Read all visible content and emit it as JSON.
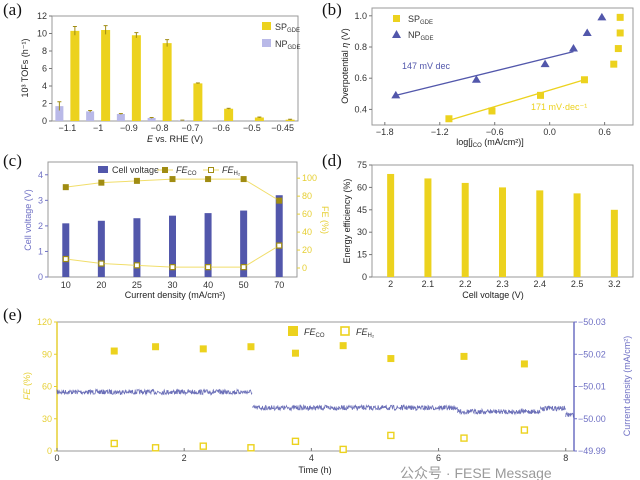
{
  "colors": {
    "yellow": "#ecd21e",
    "lavender": "#b9b9e8",
    "blue": "#5257ab",
    "olive": "#a08c12",
    "fe_axis": "#e6cf33",
    "cv_axis": "#6f70c4"
  },
  "chart_data": [
    {
      "panel": "(a)",
      "type": "bar",
      "categories": [
        "-1.1",
        "-1",
        "-0.9",
        "-0.8",
        "-0.7",
        "-0.6",
        "-0.5",
        "-0.45"
      ],
      "xlabel": {
        "pre": "E",
        "post": " vs. RHE (V)"
      },
      "ylabel": "10³ TOFs (h⁻¹)",
      "ylim": [
        0,
        12
      ],
      "yticks": [
        0,
        2,
        4,
        6,
        8,
        10,
        12
      ],
      "legend": "top-right",
      "series": [
        {
          "name": {
            "main": "SP",
            "sub": "GDE"
          },
          "color": "#ecd21e",
          "values": [
            10.3,
            10.4,
            9.8,
            8.9,
            4.3,
            1.4,
            0.4,
            0.15
          ],
          "errors": [
            0.5,
            0.5,
            0.3,
            0.4,
            0.05,
            0.05,
            0.05,
            0.05
          ]
        },
        {
          "name": {
            "main": "NP",
            "sub": "GDE"
          },
          "color": "#b9b9e8",
          "values": [
            1.7,
            1.1,
            0.8,
            0.35,
            0.08,
            0.02,
            0,
            0
          ],
          "errors": [
            0.5,
            0.1,
            0.05,
            0.05,
            0.02,
            0,
            0,
            0
          ]
        }
      ]
    },
    {
      "panel": "(b)",
      "type": "scatter",
      "xlabel": {
        "pre": "log[j",
        "sub": "CO",
        "post": " (mA/cm²)]"
      },
      "ylabel": {
        "pre": "Overpotential ",
        "it": "η",
        "post": " (V)"
      },
      "xlim": [
        -1.94,
        0.91
      ],
      "ylim": [
        0.3,
        1.05
      ],
      "xticks": [
        -1.8,
        -1.2,
        -0.6,
        0.0,
        0.6
      ],
      "yticks": [
        0.4,
        0.6,
        0.8,
        1.0
      ],
      "legend": "top-left",
      "series": [
        {
          "name": {
            "main": "SP",
            "sub": "GDE"
          },
          "marker": "square",
          "color": "#ecd21e",
          "x": [
            -1.1,
            -0.63,
            -0.1,
            0.38,
            0.7,
            0.75,
            0.77,
            0.77
          ],
          "y": [
            0.34,
            0.39,
            0.49,
            0.59,
            0.69,
            0.79,
            0.89,
            0.99
          ],
          "fit": [
            [
              -1.1,
              0.33
            ],
            [
              0.38,
              0.59
            ]
          ],
          "annotation": "171 mV·dec⁻¹"
        },
        {
          "name": {
            "main": "NP",
            "sub": "GDE"
          },
          "marker": "triangle",
          "color": "#5257ab",
          "x": [
            -1.68,
            -0.8,
            -0.05,
            0.26,
            0.41,
            0.57
          ],
          "y": [
            0.49,
            0.59,
            0.69,
            0.79,
            0.89,
            0.99
          ],
          "fit": [
            [
              -1.68,
              0.49
            ],
            [
              0.26,
              0.77
            ]
          ],
          "annotation": "147 mV dec"
        }
      ]
    },
    {
      "panel": "(c)",
      "type": "bar+line",
      "categories": [
        "10",
        "20",
        "25",
        "30",
        "40",
        "50",
        "70"
      ],
      "xlabel": "Current density (mA/cm²)",
      "ylabel_left": "Cell voltage (V)",
      "ylabel_right": "FE (%)",
      "ylim_left": [
        0,
        4.5
      ],
      "ylim_right": [
        -10,
        118
      ],
      "yticks_left": [
        0,
        1,
        2,
        3,
        4
      ],
      "yticks_right": [
        0,
        20,
        40,
        60,
        80,
        100
      ],
      "legend": "top",
      "bars": {
        "name": "Cell voltage",
        "values": [
          2.1,
          2.2,
          2.3,
          2.4,
          2.5,
          2.6,
          3.2
        ]
      },
      "lines": [
        {
          "name": {
            "main": "FE",
            "sub": "CO"
          },
          "values": [
            90,
            95,
            97,
            99,
            99,
            99,
            75
          ],
          "marker": "filled-square"
        },
        {
          "name": {
            "main": "FE",
            "sub": "H₂"
          },
          "values": [
            10,
            5,
            3,
            1,
            1,
            1,
            25
          ],
          "marker": "open-square"
        }
      ]
    },
    {
      "panel": "(d)",
      "type": "bar",
      "categories": [
        "2",
        "2.1",
        "2.2",
        "2.3",
        "2.4",
        "2.5",
        "3.2"
      ],
      "xlabel": "Cell voltage (V)",
      "ylabel": "Energy efficiency (%)",
      "ylim": [
        0,
        75
      ],
      "yticks": [
        0,
        15,
        30,
        45,
        60,
        75
      ],
      "values": [
        69,
        66,
        63,
        60,
        58,
        56,
        45
      ]
    },
    {
      "panel": "(e)",
      "type": "scatter+line",
      "xlabel": "Time (h)",
      "ylabel_left": {
        "it": "FE",
        "post": " (%)"
      },
      "ylabel_right": "Current density (mA/cm²)",
      "xlim": [
        0,
        8.13
      ],
      "ylim_left": [
        0,
        120
      ],
      "ylim_right": [
        -50.03,
        -49.99
      ],
      "xticks": [
        0,
        2,
        4,
        6,
        8
      ],
      "yticks_left": [
        0,
        30,
        60,
        90,
        120
      ],
      "yticks_right": [
        "-50.03",
        "-50.02",
        "-50.01",
        "-50.00",
        "-49.99"
      ],
      "legend": "top",
      "series": [
        {
          "name": {
            "main": "FE",
            "sub": "CO"
          },
          "marker": "filled-square",
          "x": [
            0.9,
            1.55,
            2.3,
            3.05,
            3.75,
            4.5,
            5.25,
            6.4,
            7.35
          ],
          "y": [
            93,
            97,
            95,
            97,
            91,
            98,
            86,
            88,
            81
          ]
        },
        {
          "name": {
            "main": "FE",
            "sub": "H₂"
          },
          "marker": "open-square",
          "x": [
            0.9,
            1.55,
            2.3,
            3.05,
            3.75,
            4.5,
            5.25,
            6.4,
            7.35
          ],
          "y": [
            7,
            3,
            4.5,
            3,
            9,
            1.5,
            14.5,
            12,
            19.5
          ]
        }
      ],
      "current_segments": [
        {
          "from": 0,
          "to": 3.07,
          "level": -50.0083
        },
        {
          "from": 3.07,
          "to": 6.3,
          "level": -50.0034
        },
        {
          "from": 6.3,
          "to": 7.6,
          "level": -50.0022
        },
        {
          "from": 7.6,
          "to": 8.0,
          "level": -50.0032
        },
        {
          "from": 8.0,
          "to": 8.13,
          "level": -50.0012
        }
      ]
    }
  ],
  "watermark": "公众号 · FESE Message"
}
